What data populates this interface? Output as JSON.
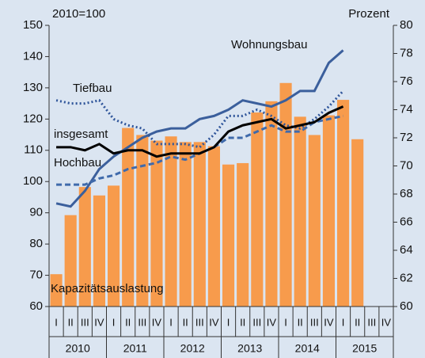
{
  "chart_data": {
    "type": "bar_line",
    "left_axis_label": "2010=100",
    "right_axis_label": "Prozent",
    "categories": [
      "I",
      "II",
      "III",
      "IV",
      "I",
      "II",
      "III",
      "IV",
      "I",
      "II",
      "III",
      "IV",
      "I",
      "II",
      "III",
      "IV",
      "I",
      "II",
      "III",
      "IV",
      "I",
      "II",
      "III",
      "IV"
    ],
    "years": [
      "2010",
      "2011",
      "2012",
      "2013",
      "2014",
      "2015"
    ],
    "ylim": [
      60,
      150
    ],
    "yticks": [
      60,
      70,
      80,
      90,
      100,
      110,
      120,
      130,
      140,
      150
    ],
    "y2lim": [
      60,
      80
    ],
    "y2ticks": [
      60,
      62,
      64,
      66,
      68,
      70,
      72,
      74,
      76,
      78,
      80
    ],
    "series": [
      {
        "name": "Kapazitätsauslastung",
        "kind": "bar",
        "axis": "y2",
        "color": "#f79b4c",
        "values": [
          62.3,
          66.5,
          68.5,
          67.9,
          68.6,
          72.7,
          72.2,
          71.8,
          72.1,
          71.7,
          71.7,
          71.4,
          70.1,
          70.2,
          73.8,
          74.6,
          75.9,
          73.5,
          72.2,
          73.6,
          74.7,
          71.9,
          null,
          null
        ]
      },
      {
        "name": "Wohnungsbau",
        "kind": "line",
        "axis": "y",
        "color": "#3b5f9c",
        "style": "solid",
        "values": [
          93,
          92,
          97,
          104,
          108,
          111,
          114,
          116,
          117,
          117,
          120,
          121,
          123,
          126,
          125,
          124,
          126,
          129,
          129,
          138,
          142,
          null,
          null,
          null
        ]
      },
      {
        "name": "Tiefbau",
        "kind": "line",
        "axis": "y",
        "color": "#2f559a",
        "style": "dotted",
        "values": [
          126,
          125,
          125,
          126,
          120,
          118,
          117,
          112,
          112,
          112,
          111,
          115,
          121,
          121,
          123,
          121,
          118,
          117,
          120,
          124,
          129,
          null,
          null,
          null
        ]
      },
      {
        "name": "Hochbau",
        "kind": "line",
        "axis": "y",
        "color": "#3f6aab",
        "style": "dashed",
        "values": [
          99,
          99,
          99,
          101,
          102,
          104,
          105,
          106,
          108,
          107,
          109,
          111,
          114,
          114,
          116,
          118,
          116,
          116,
          119,
          120,
          121,
          null,
          null,
          null
        ]
      },
      {
        "name": "insgesamt",
        "kind": "line",
        "axis": "y",
        "color": "#000000",
        "style": "solid",
        "values": [
          111,
          111,
          110,
          112,
          109,
          110,
          110,
          108,
          109,
          109,
          109,
          111,
          116,
          118,
          119,
          120,
          117,
          118,
          119,
          122,
          124,
          null,
          null,
          null
        ]
      }
    ]
  }
}
